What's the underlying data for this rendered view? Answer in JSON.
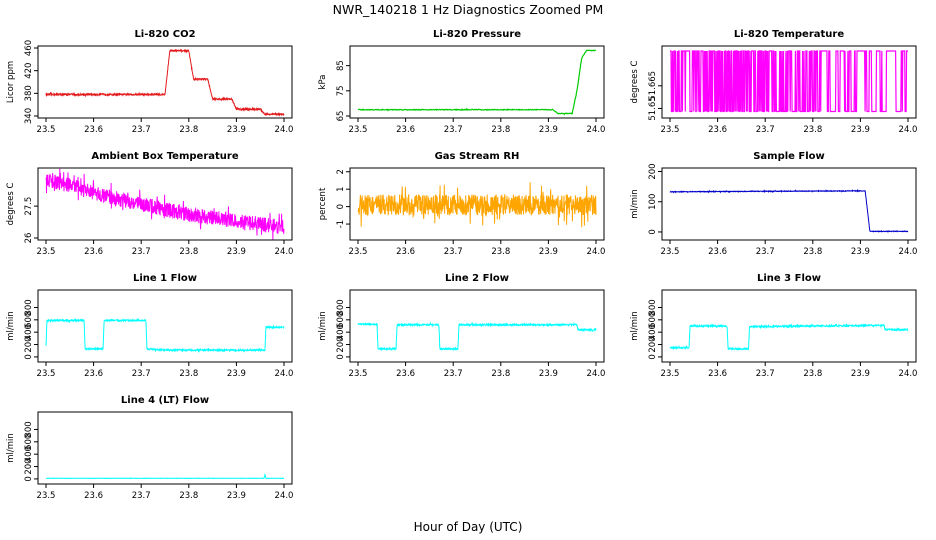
{
  "title": "NWR_140218  1 Hz Diagnostics Zoomed PM",
  "xlabel": "Hour of Day (UTC)",
  "chart_data": [
    {
      "type": "line",
      "title": "Li-820 CO2",
      "ylabel": "Licor ppm",
      "color": "#e31a1c",
      "xlim": [
        23.5,
        24.0
      ],
      "ylim": [
        340,
        460
      ],
      "xticks": [
        23.5,
        23.6,
        23.7,
        23.8,
        23.9,
        24.0
      ],
      "yticks": [
        340,
        380,
        420,
        460
      ],
      "x": [
        23.5,
        23.75,
        23.76,
        23.8,
        23.81,
        23.84,
        23.85,
        23.89,
        23.9,
        23.95,
        23.96,
        23.97,
        24.0
      ],
      "values": [
        378,
        378,
        455,
        455,
        405,
        405,
        370,
        370,
        352,
        352,
        343,
        343,
        343
      ],
      "noise": 1.5
    },
    {
      "type": "line",
      "title": "Li-820 Pressure",
      "ylabel": "kPa",
      "color": "#00cc00",
      "xlim": [
        23.5,
        24.0
      ],
      "ylim": [
        65,
        92
      ],
      "xticks": [
        23.5,
        23.6,
        23.7,
        23.8,
        23.9,
        24.0
      ],
      "yticks": [
        65,
        75,
        85
      ],
      "x": [
        23.5,
        23.91,
        23.92,
        23.95,
        23.96,
        23.97,
        23.98,
        24.0
      ],
      "values": [
        67.5,
        67.5,
        66,
        66,
        75,
        88,
        91,
        91
      ],
      "noise": 0.15
    },
    {
      "type": "line",
      "title": "Li-820 Temperature",
      "ylabel": "degrees C",
      "color": "#ff00ff",
      "xlim": [
        23.5,
        24.0
      ],
      "ylim": [
        51.645,
        51.69
      ],
      "xticks": [
        23.5,
        23.6,
        23.7,
        23.8,
        23.9,
        24.0
      ],
      "yticks": [
        51.65,
        51.665
      ],
      "x": [
        23.5,
        24.0
      ],
      "values": [
        51.648,
        51.688
      ],
      "noise": 0,
      "style": "toggle"
    },
    {
      "type": "line",
      "title": "Ambient Box Temperature",
      "ylabel": "degrees C",
      "color": "#ff00ff",
      "xlim": [
        23.5,
        24.0
      ],
      "ylim": [
        26,
        29.2
      ],
      "xticks": [
        23.5,
        23.6,
        23.7,
        23.8,
        23.9,
        24.0
      ],
      "yticks": [
        26.0,
        27.5
      ],
      "x": [
        23.5,
        23.55,
        23.6,
        23.7,
        23.8,
        23.9,
        24.0
      ],
      "values": [
        28.7,
        28.5,
        28.1,
        27.6,
        27.1,
        26.8,
        26.5
      ],
      "noise": 0.35
    },
    {
      "type": "line",
      "title": "Gas Stream RH",
      "ylabel": "percent",
      "color": "#ffa500",
      "xlim": [
        23.5,
        24.0
      ],
      "ylim": [
        -1.8,
        2.1
      ],
      "xticks": [
        23.5,
        23.6,
        23.7,
        23.8,
        23.9,
        24.0
      ],
      "yticks": [
        -1,
        0,
        1,
        2
      ],
      "x": [
        23.5,
        24.0
      ],
      "values": [
        0.1,
        0.1
      ],
      "noise": 0.6
    },
    {
      "type": "line",
      "title": "Sample Flow",
      "ylabel": "ml/min",
      "color": "#0000cc",
      "xlim": [
        23.5,
        24.0
      ],
      "ylim": [
        -20,
        205
      ],
      "xticks": [
        23.5,
        23.6,
        23.7,
        23.8,
        23.9,
        24.0
      ],
      "yticks": [
        0,
        100,
        200
      ],
      "x": [
        23.5,
        23.91,
        23.92,
        24.0
      ],
      "values": [
        133,
        136,
        2,
        2
      ],
      "noise": 1
    },
    {
      "type": "line",
      "title": "Line 1 Flow",
      "ylabel": "ml/min",
      "color": "#00ffff",
      "xlim": [
        23.5,
        24.0
      ],
      "ylim": [
        -50,
        1050
      ],
      "xticks": [
        23.5,
        23.6,
        23.7,
        23.8,
        23.9,
        24.0
      ],
      "yticks": [
        0,
        200,
        400,
        600,
        800
      ],
      "x": [
        23.5,
        23.502,
        23.58,
        23.582,
        23.62,
        23.622,
        23.71,
        23.712,
        23.75,
        23.96,
        23.962,
        24.0
      ],
      "values": [
        170,
        590,
        590,
        130,
        130,
        590,
        590,
        130,
        110,
        110,
        480,
        480
      ],
      "noise": 12
    },
    {
      "type": "line",
      "title": "Line 2 Flow",
      "ylabel": "ml/min",
      "color": "#00ffff",
      "xlim": [
        23.5,
        24.0
      ],
      "ylim": [
        -50,
        1050
      ],
      "xticks": [
        23.5,
        23.6,
        23.7,
        23.8,
        23.9,
        24.0
      ],
      "yticks": [
        0,
        200,
        400,
        600,
        800
      ],
      "x": [
        23.5,
        23.54,
        23.542,
        23.58,
        23.582,
        23.67,
        23.672,
        23.71,
        23.712,
        23.96,
        23.962,
        24.0
      ],
      "values": [
        530,
        530,
        130,
        130,
        520,
        520,
        130,
        130,
        520,
        520,
        440,
        440
      ],
      "noise": 12
    },
    {
      "type": "line",
      "title": "Line 3 Flow",
      "ylabel": "ml/min",
      "color": "#00ffff",
      "xlim": [
        23.5,
        24.0
      ],
      "ylim": [
        -50,
        1050
      ],
      "xticks": [
        23.5,
        23.6,
        23.7,
        23.8,
        23.9,
        24.0
      ],
      "yticks": [
        0,
        200,
        400,
        600,
        800
      ],
      "x": [
        23.5,
        23.502,
        23.54,
        23.542,
        23.62,
        23.622,
        23.665,
        23.667,
        23.95,
        23.952,
        24.0
      ],
      "values": [
        150,
        150,
        150,
        500,
        500,
        130,
        130,
        490,
        510,
        440,
        440
      ],
      "noise": 12
    },
    {
      "type": "line",
      "title": "Line 4 (LT) Flow",
      "ylabel": "ml/min",
      "color": "#00ffff",
      "xlim": [
        23.5,
        24.0
      ],
      "ylim": [
        -50,
        1050
      ],
      "xticks": [
        23.5,
        23.6,
        23.7,
        23.8,
        23.9,
        24.0
      ],
      "yticks": [
        0,
        200,
        400,
        600,
        800
      ],
      "x": [
        23.5,
        23.958,
        23.96,
        23.962,
        24.0
      ],
      "values": [
        10,
        10,
        70,
        10,
        10
      ],
      "noise": 2
    }
  ]
}
